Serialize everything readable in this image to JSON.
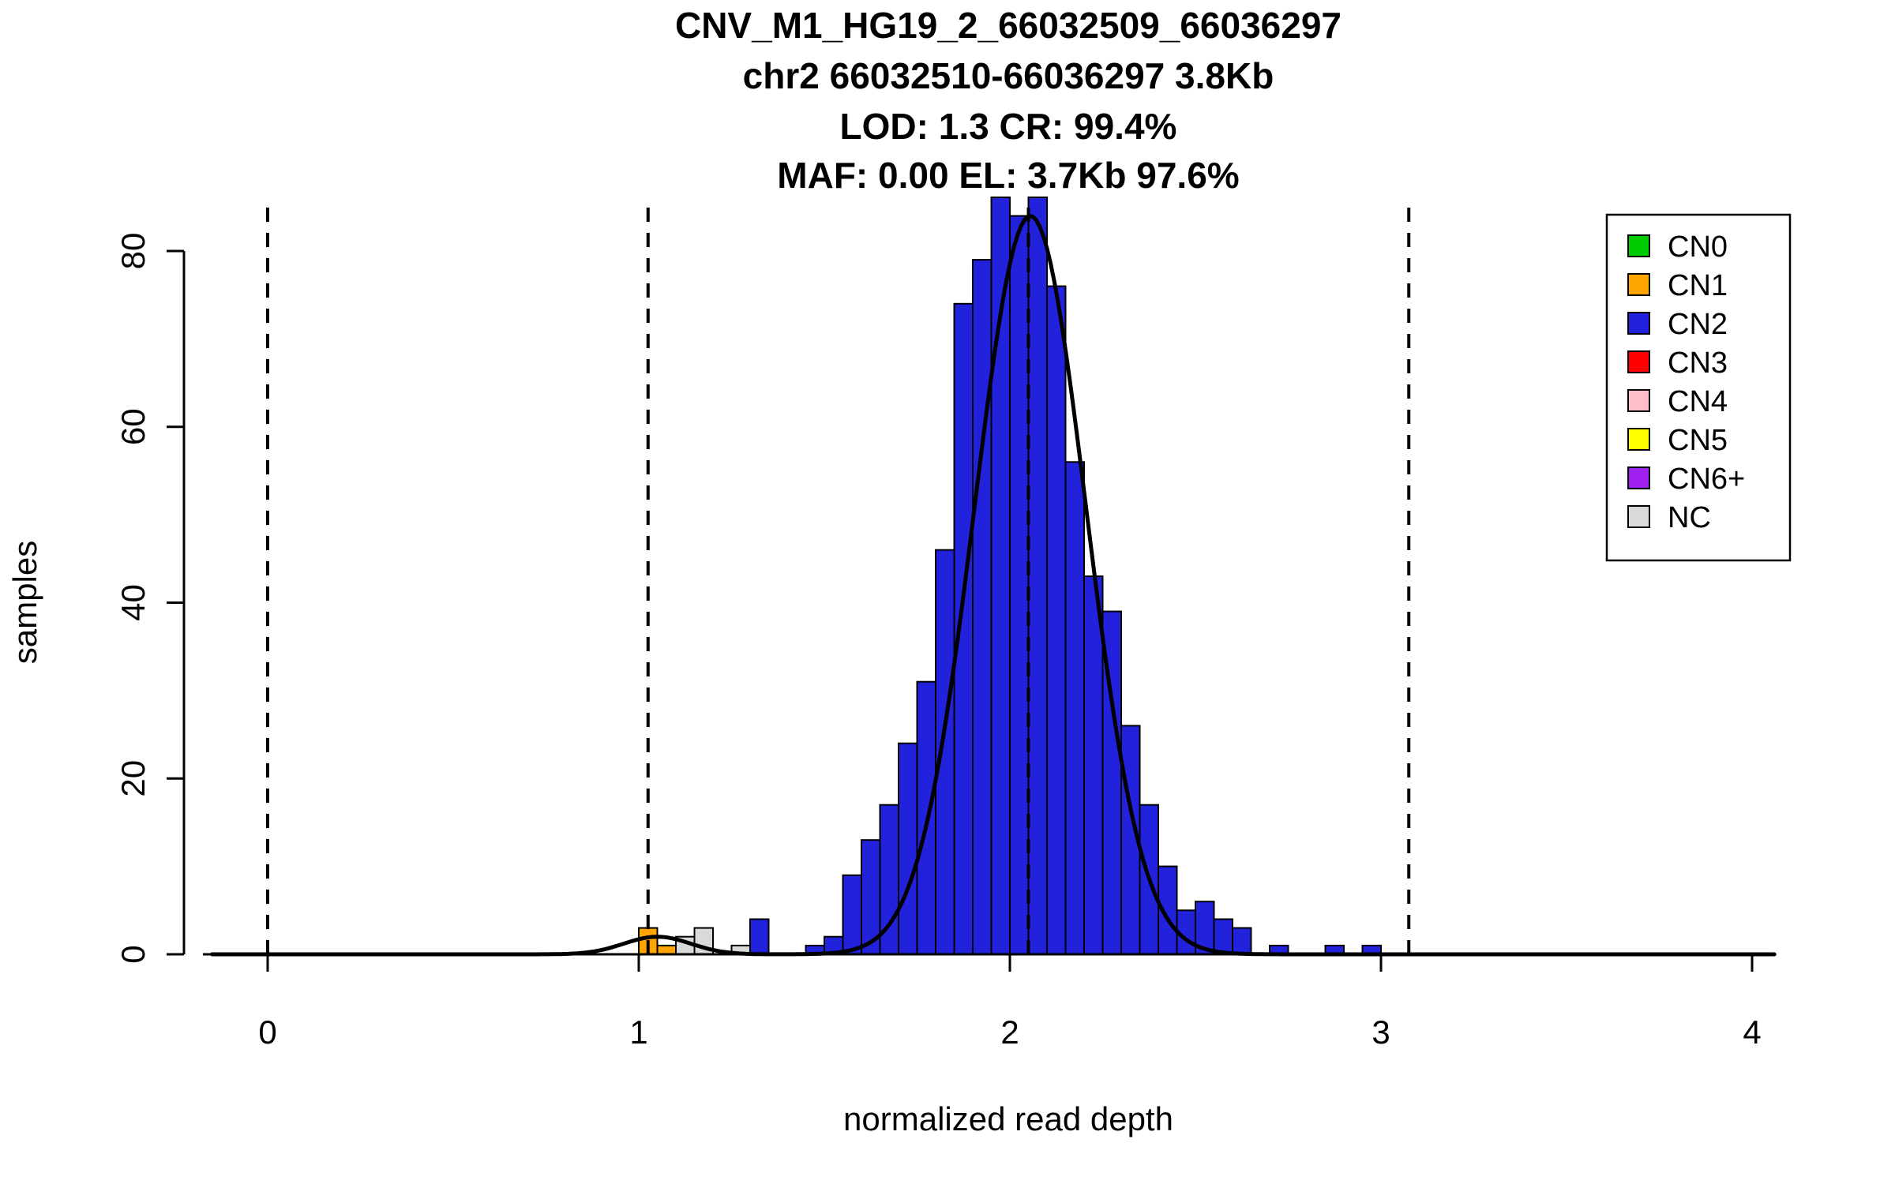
{
  "title": {
    "line1": "CNV_M1_HG19_2_66032509_66036297",
    "line2": "chr2 66032510-66036297 3.8Kb",
    "line3": "LOD: 1.3 CR: 99.4%",
    "line4": "MAF: 0.00 EL: 3.7Kb 97.6%"
  },
  "legend": {
    "items": [
      {
        "label": "CN0",
        "color": "#00CD00"
      },
      {
        "label": "CN1",
        "color": "#FFA500"
      },
      {
        "label": "CN2",
        "color": "#2222DD"
      },
      {
        "label": "CN3",
        "color": "#FF0000"
      },
      {
        "label": "CN4",
        "color": "#FFC0CB"
      },
      {
        "label": "CN5",
        "color": "#FFFF00"
      },
      {
        "label": "CN6+",
        "color": "#A020F0"
      },
      {
        "label": "NC",
        "color": "#D9D9D9"
      }
    ]
  },
  "chart_data": {
    "type": "bar",
    "subtype": "histogram",
    "title": "CNV_M1_HG19_2_66032509_66036297",
    "subtitle_lines": [
      "chr2 66032510-66036297 3.8Kb",
      "LOD: 1.3 CR: 99.4%",
      "MAF: 0.00 EL: 3.7Kb 97.6%"
    ],
    "xlabel": "normalized read depth",
    "ylabel": "samples",
    "xlim": [
      -0.18,
      4.05
    ],
    "ylim": [
      0,
      86
    ],
    "x_ticks": [
      0,
      1,
      2,
      3,
      4
    ],
    "y_ticks": [
      0,
      20,
      40,
      60,
      80
    ],
    "grid": false,
    "legend_position": "top-right",
    "bin_width": 0.05,
    "dashed_guides_x": [
      0,
      1.025,
      2.05,
      3.075
    ],
    "cn_colors": {
      "CN0": "#00CD00",
      "CN1": "#FFA500",
      "CN2": "#2222DD",
      "CN3": "#FF0000",
      "CN4": "#FFC0CB",
      "CN5": "#FFFF00",
      "CN6+": "#A020F0",
      "NC": "#D9D9D9"
    },
    "bins": [
      {
        "x": 1.0,
        "count": 3,
        "cn": "CN1"
      },
      {
        "x": 1.05,
        "count": 1,
        "cn": "CN1"
      },
      {
        "x": 1.1,
        "count": 2,
        "cn": "NC"
      },
      {
        "x": 1.15,
        "count": 3,
        "cn": "NC"
      },
      {
        "x": 1.25,
        "count": 1,
        "cn": "NC"
      },
      {
        "x": 1.3,
        "count": 4,
        "cn": "CN2"
      },
      {
        "x": 1.45,
        "count": 1,
        "cn": "CN2"
      },
      {
        "x": 1.5,
        "count": 2,
        "cn": "CN2"
      },
      {
        "x": 1.55,
        "count": 9,
        "cn": "CN2"
      },
      {
        "x": 1.6,
        "count": 13,
        "cn": "CN2"
      },
      {
        "x": 1.65,
        "count": 17,
        "cn": "CN2"
      },
      {
        "x": 1.7,
        "count": 24,
        "cn": "CN2"
      },
      {
        "x": 1.75,
        "count": 31,
        "cn": "CN2"
      },
      {
        "x": 1.8,
        "count": 46,
        "cn": "CN2"
      },
      {
        "x": 1.85,
        "count": 74,
        "cn": "CN2"
      },
      {
        "x": 1.9,
        "count": 79,
        "cn": "CN2"
      },
      {
        "x": 1.95,
        "count": 88,
        "cn": "CN2"
      },
      {
        "x": 2.0,
        "count": 84,
        "cn": "CN2"
      },
      {
        "x": 2.05,
        "count": 88,
        "cn": "CN2"
      },
      {
        "x": 2.1,
        "count": 76,
        "cn": "CN2"
      },
      {
        "x": 2.15,
        "count": 56,
        "cn": "CN2"
      },
      {
        "x": 2.2,
        "count": 43,
        "cn": "CN2"
      },
      {
        "x": 2.25,
        "count": 39,
        "cn": "CN2"
      },
      {
        "x": 2.3,
        "count": 26,
        "cn": "CN2"
      },
      {
        "x": 2.35,
        "count": 17,
        "cn": "CN2"
      },
      {
        "x": 2.4,
        "count": 10,
        "cn": "CN2"
      },
      {
        "x": 2.45,
        "count": 5,
        "cn": "CN2"
      },
      {
        "x": 2.5,
        "count": 6,
        "cn": "CN2"
      },
      {
        "x": 2.55,
        "count": 4,
        "cn": "CN2"
      },
      {
        "x": 2.6,
        "count": 3,
        "cn": "CN2"
      },
      {
        "x": 2.7,
        "count": 1,
        "cn": "CN2"
      },
      {
        "x": 2.85,
        "count": 1,
        "cn": "CN2"
      },
      {
        "x": 2.95,
        "count": 1,
        "cn": "CN2"
      }
    ],
    "fit_curve": {
      "type": "gaussian_mixture",
      "components": [
        {
          "mu": 2.055,
          "sigma": 0.15,
          "amplitude": 84
        },
        {
          "mu": 1.05,
          "sigma": 0.09,
          "amplitude": 2
        }
      ]
    }
  }
}
